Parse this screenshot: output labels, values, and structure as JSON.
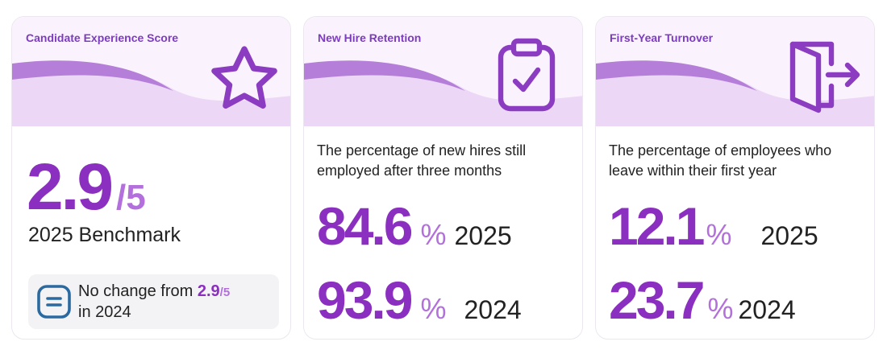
{
  "colors": {
    "accent": "#8b2fc0",
    "accent_light": "#b36fdc",
    "header_bg": "#faf3fd",
    "wave_dark": "#b57fd9",
    "wave_light": "#ecd7f7",
    "neutral_icon": "#2a6aa0"
  },
  "cards": [
    {
      "title": "Candidate Experience Score",
      "icon": "star-icon",
      "score": "2.9",
      "scale": "/5",
      "label": "2025 Benchmark",
      "note": {
        "icon": "equals-icon",
        "text_before": "No change from ",
        "value": "2.9",
        "scale": "/5",
        "text_after": "in 2024"
      }
    },
    {
      "title": "New Hire Retention",
      "icon": "clipboard-check-icon",
      "description": "The percentage of new hires still employed after three months",
      "rows": [
        {
          "value": "84.6",
          "unit": "%",
          "year": "2025"
        },
        {
          "value": "93.9",
          "unit": "%",
          "year": "2024"
        }
      ]
    },
    {
      "title": "First-Year Turnover",
      "icon": "door-exit-icon",
      "description": "The percentage of employees who leave within their first year",
      "rows": [
        {
          "value": "12.1",
          "unit": "%",
          "year": "2025"
        },
        {
          "value": "23.7",
          "unit": "%",
          "year": "2024"
        }
      ]
    }
  ]
}
